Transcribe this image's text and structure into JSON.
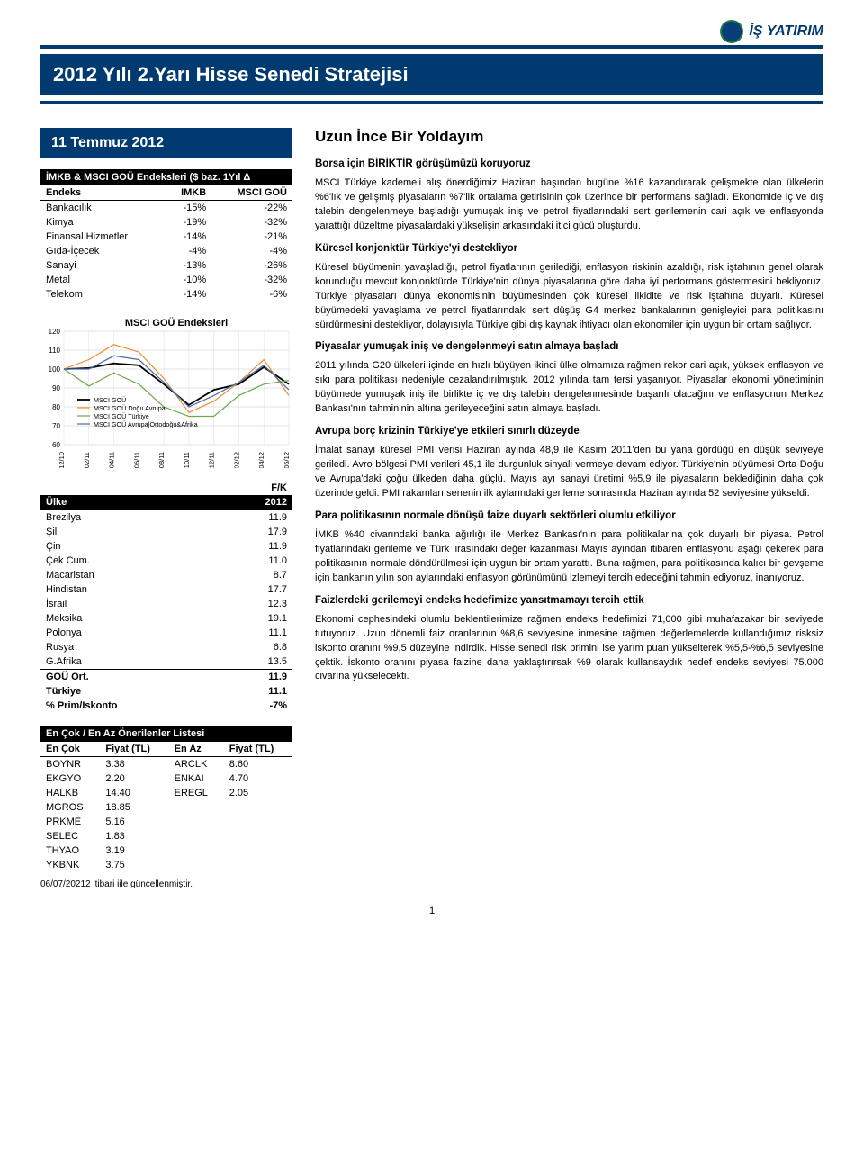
{
  "brand": {
    "name": "İŞ YATIRIM"
  },
  "header": {
    "title": "2012 Yılı 2.Yarı Hisse Senedi Stratejisi"
  },
  "date_box": "11 Temmuz 2012",
  "sectors": {
    "title": "İMKB & MSCI GOÜ Endeksleri ($ baz.  1Yıl Δ",
    "header": [
      "Endeks",
      "IMKB",
      "MSCI GOÜ"
    ],
    "rows": [
      [
        "Bankacılık",
        "-15%",
        "-22%"
      ],
      [
        "Kimya",
        "-19%",
        "-32%"
      ],
      [
        "Finansal Hizmetler",
        "-14%",
        "-21%"
      ],
      [
        "Gıda-İçecek",
        "-4%",
        "-4%"
      ],
      [
        "Sanayi",
        "-13%",
        "-26%"
      ],
      [
        "Metal",
        "-10%",
        "-32%"
      ],
      [
        "Telekom",
        "-14%",
        "-6%"
      ]
    ]
  },
  "chart": {
    "title": "MSCI GOÜ Endeksleri",
    "y_ticks": [
      60,
      70,
      80,
      90,
      100,
      110,
      120
    ],
    "ylim": [
      60,
      120
    ],
    "x_labels": [
      "12/10",
      "02/11",
      "04/11",
      "06/11",
      "08/11",
      "10/11",
      "12/11",
      "02/12",
      "04/12",
      "06/12"
    ],
    "background": "#ffffff",
    "gridline_color": "#c8c8c8",
    "series": [
      {
        "name": "MSCI GOÜ",
        "color": "#000000",
        "width": 1.8,
        "values": [
          100,
          100.5,
          103,
          102,
          92,
          81,
          89,
          92,
          101,
          92
        ]
      },
      {
        "name": "MSCI GOÜ Doğu Avrupa",
        "color": "#f08b2e",
        "width": 1.2,
        "values": [
          100,
          105,
          113,
          109,
          95,
          77,
          83,
          93,
          105,
          86
        ]
      },
      {
        "name": "MSCI GOÜ Türkiye",
        "color": "#6aa84f",
        "width": 1.2,
        "values": [
          100,
          91,
          98,
          92,
          80,
          75,
          75,
          86,
          92,
          94
        ]
      },
      {
        "name": "MSCI GOÜ Avrupa|Ortodoğu&Afrika",
        "color": "#4a6da7",
        "width": 1.2,
        "values": [
          100,
          100,
          107,
          105,
          93,
          80,
          86,
          93,
          102,
          89
        ]
      }
    ]
  },
  "fk": {
    "header_top": "F/K",
    "header": [
      "Ülke",
      "2012"
    ],
    "rows": [
      [
        "Brezilya",
        "11.9"
      ],
      [
        "Şili",
        "17.9"
      ],
      [
        "Çin",
        "11.9"
      ],
      [
        "Çek Cum.",
        "11.0"
      ],
      [
        "Macaristan",
        "8.7"
      ],
      [
        "Hindistan",
        "17.7"
      ],
      [
        "İsrail",
        "12.3"
      ],
      [
        "Meksika",
        "19.1"
      ],
      [
        "Polonya",
        "11.1"
      ],
      [
        "Rusya",
        "6.8"
      ],
      [
        "G.Afrika",
        "13.5"
      ]
    ],
    "summary": [
      [
        "GOÜ Ort.",
        "11.9"
      ],
      [
        "Türkiye",
        "11.1"
      ],
      [
        "% Prim/Iskonto",
        "-7%"
      ]
    ]
  },
  "recommended": {
    "title": "En Çok / En Az Önerilenler Listesi",
    "header": [
      "En Çok",
      "Fiyat (TL)",
      "En Az",
      "Fiyat (TL)"
    ],
    "rows": [
      [
        "BOYNR",
        "3.38",
        "ARCLK",
        "8.60"
      ],
      [
        "EKGYO",
        "2.20",
        "ENKAI",
        "4.70"
      ],
      [
        "HALKB",
        "14.40",
        "EREGL",
        "2.05"
      ],
      [
        "MGROS",
        "18.85",
        "",
        ""
      ],
      [
        "PRKME",
        "5.16",
        "",
        ""
      ],
      [
        "SELEC",
        "1.83",
        "",
        ""
      ],
      [
        "THYAO",
        "3.19",
        "",
        ""
      ],
      [
        "YKBNK",
        "3.75",
        "",
        ""
      ]
    ],
    "note": "06/07/20212 itibari iile güncellenmiştir."
  },
  "article": {
    "title": "Uzun İnce Bir Yoldayım",
    "sections": [
      {
        "heading": "Borsa için BİRİKTİR görüşümüzü koruyoruz",
        "paragraphs": [
          "MSCI Türkiye kademeli alış önerdiğimiz Haziran başından bugüne %16 kazandırarak gelişmekte olan ülkelerin %6'lık ve gelişmiş piyasaların %7'lik ortalama getirisinin çok üzerinde bir performans sağladı. Ekonomide iç ve dış talebin dengelenmeye başladığı yumuşak iniş ve petrol fiyatlarındaki sert gerilemenin cari açık ve enflasyonda yarattığı düzeltme piyasalardaki yükselişin arkasındaki itici gücü oluşturdu."
        ]
      },
      {
        "heading": "Küresel konjonktür Türkiye'yi destekliyor",
        "paragraphs": [
          "Küresel büyümenin yavaşladığı, petrol fiyatlarının gerilediği, enflasyon riskinin azaldığı, risk iştahının genel olarak korunduğu mevcut konjonktürde Türkiye'nin dünya piyasalarına göre daha iyi performans göstermesini bekliyoruz. Türkiye piyasaları dünya ekonomisinin büyümesinden çok küresel likidite ve risk iştahına duyarlı. Küresel büyümedeki yavaşlama ve petrol fiyatlarındaki sert düşüş G4 merkez bankalarının genişleyici para politikasını sürdürmesini destekliyor, dolayısıyla Türkiye gibi dış kaynak ihtiyacı olan ekonomiler için uygun bir ortam sağlıyor."
        ]
      },
      {
        "heading": "Piyasalar yumuşak iniş ve dengelenmeyi satın almaya başladı",
        "paragraphs": [
          "2011 yılında G20 ülkeleri içinde en hızlı büyüyen ikinci ülke olmamıza rağmen rekor cari açık, yüksek enflasyon ve sıkı para politikası nedeniyle cezalandırılmıştık. 2012 yılında tam tersi yaşanıyor. Piyasalar ekonomi yönetiminin büyümede yumuşak iniş ile birlikte iç ve dış talebin dengelenmesinde başarılı olacağını ve enflasyonun Merkez Bankası'nın tahmininin altına gerileyeceğini satın almaya başladı."
        ]
      },
      {
        "heading": "Avrupa borç krizinin Türkiye'ye etkileri sınırlı düzeyde",
        "paragraphs": [
          "İmalat sanayi küresel PMI verisi Haziran ayında 48,9 ile Kasım 2011'den bu yana gördüğü en düşük seviyeye geriledi. Avro bölgesi PMI verileri 45,1 ile durgunluk sinyali vermeye devam ediyor. Türkiye'nin büyümesi Orta Doğu ve Avrupa'daki çoğu ülkeden daha güçlü. Mayıs ayı sanayi üretimi %5,9 ile piyasaların beklediğinin daha çok üzerinde geldi. PMI rakamları senenin ilk aylarındaki gerileme sonrasında Haziran ayında 52 seviyesine yükseldi."
        ]
      },
      {
        "heading": "Para politikasının normale dönüşü faize duyarlı sektörleri olumlu etkiliyor",
        "paragraphs": [
          "İMKB %40 civarındaki banka ağırlığı ile Merkez Bankası'nın para politikalarına çok duyarlı bir piyasa. Petrol fiyatlarındaki gerileme ve Türk lirasındaki değer kazanması Mayıs ayından itibaren enflasyonu aşağı çekerek para politikasının normale döndürülmesi için uygun bir ortam yarattı. Buna rağmen, para politikasında kalıcı bir gevşeme için bankanın yılın son aylarındaki enflasyon görünümünü izlemeyi tercih edeceğini tahmin ediyoruz, inanıyoruz."
        ]
      },
      {
        "heading": "Faizlerdeki gerilemeyi endeks hedefimize yansıtmamayı tercih ettik",
        "paragraphs": [
          "Ekonomi cephesindeki olumlu beklentilerimize rağmen endeks hedefimizi 71,000 gibi muhafazakar bir seviyede tutuyoruz. Uzun dönemli faiz oranlarının %8,6 seviyesine inmesine rağmen değerlemelerde kullandığımız risksiz iskonto oranını %9,5 düzeyine indirdik. Hisse senedi risk primini ise yarım puan yükselterek %5,5-%6,5 seviyesine çektik. İskonto oranını piyasa faizine daha yaklaştırırsak %9 olarak kullansaydık hedef endeks seviyesi 75.000 civarına yükselecekti."
        ]
      }
    ]
  },
  "page_number": "1"
}
